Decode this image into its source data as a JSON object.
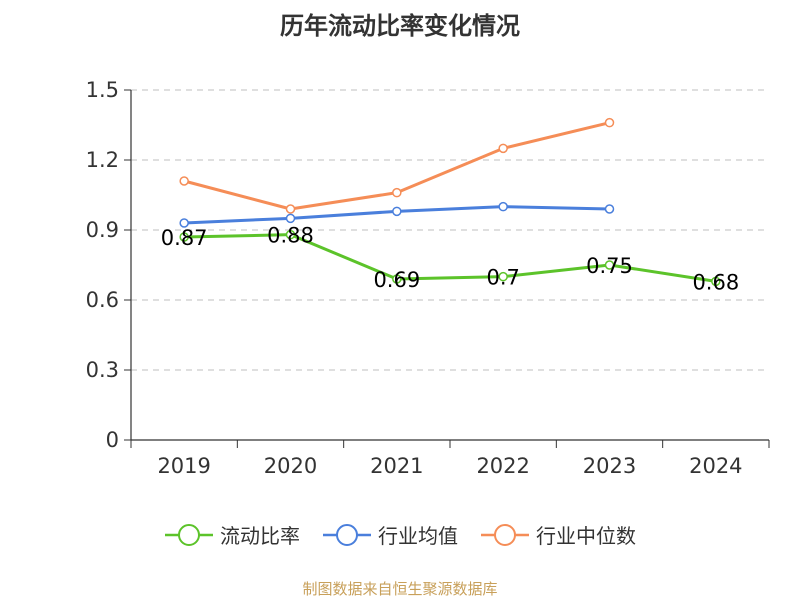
{
  "chart_data": {
    "type": "line",
    "title": "历年流动比率变化情况",
    "categories": [
      "2019",
      "2020",
      "2021",
      "2022",
      "2023",
      "2024"
    ],
    "ylim": [
      0,
      1.5
    ],
    "yticks": [
      "0",
      "0.3",
      "0.6",
      "0.9",
      "1.2",
      "1.5"
    ],
    "ytick_values": [
      0,
      0.3,
      0.6,
      0.9,
      1.2,
      1.5
    ],
    "grid": true,
    "legend_position": "bottom",
    "series": [
      {
        "name": "流动比率",
        "color": "#5cc32a",
        "values": [
          0.87,
          0.88,
          0.69,
          0.7,
          0.75,
          0.68
        ],
        "labels": [
          "0.87",
          "0.88",
          "0.69",
          "0.7",
          "0.75",
          "0.68"
        ]
      },
      {
        "name": "行业均值",
        "color": "#4a7fdc",
        "values": [
          0.93,
          0.95,
          0.98,
          1.0,
          0.99,
          null
        ]
      },
      {
        "name": "行业中位数",
        "color": "#f58d57",
        "values": [
          1.11,
          0.99,
          1.06,
          1.25,
          1.36,
          null
        ]
      }
    ]
  },
  "source": "制图数据来自恒生聚源数据库"
}
